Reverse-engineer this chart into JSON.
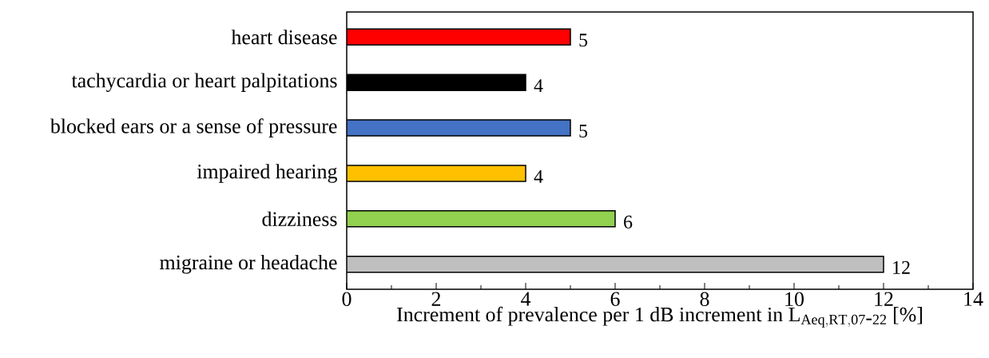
{
  "chart_data": {
    "type": "bar",
    "orientation": "horizontal",
    "xlabel": "\\mbox{Increment of prevalence per 1 dB increment in }\\mathrm{L}_{\\mathrm{Aeq,RT,07\\mbox{-}22}}\\mbox{ [\\%]}",
    "categories": [
      "heart disease",
      "tachycardia or heart palpitations",
      "blocked ears or a sense of pressure",
      "impaired hearing",
      "dizziness",
      "migraine or headache"
    ],
    "values": [
      5,
      4,
      5,
      4,
      6,
      12
    ],
    "colors": [
      "#ff0000",
      "#000000",
      "#4472c4",
      "#ffc000",
      "#92d050",
      "#bfbfbf"
    ],
    "xlim": [
      0,
      14
    ],
    "xticks": [
      0,
      {
        "value": 1,
        "label": null
      },
      2,
      {
        "value": 3,
        "label": null
      },
      4,
      {
        "value": 5,
        "label": null
      },
      6,
      {
        "value": 7,
        "label": null
      },
      8,
      {
        "value": 9,
        "label": null
      },
      10,
      {
        "value": 11,
        "label": null
      },
      12,
      {
        "value": 13,
        "label": null
      },
      14
    ],
    "data_labels": true,
    "grid": false
  }
}
